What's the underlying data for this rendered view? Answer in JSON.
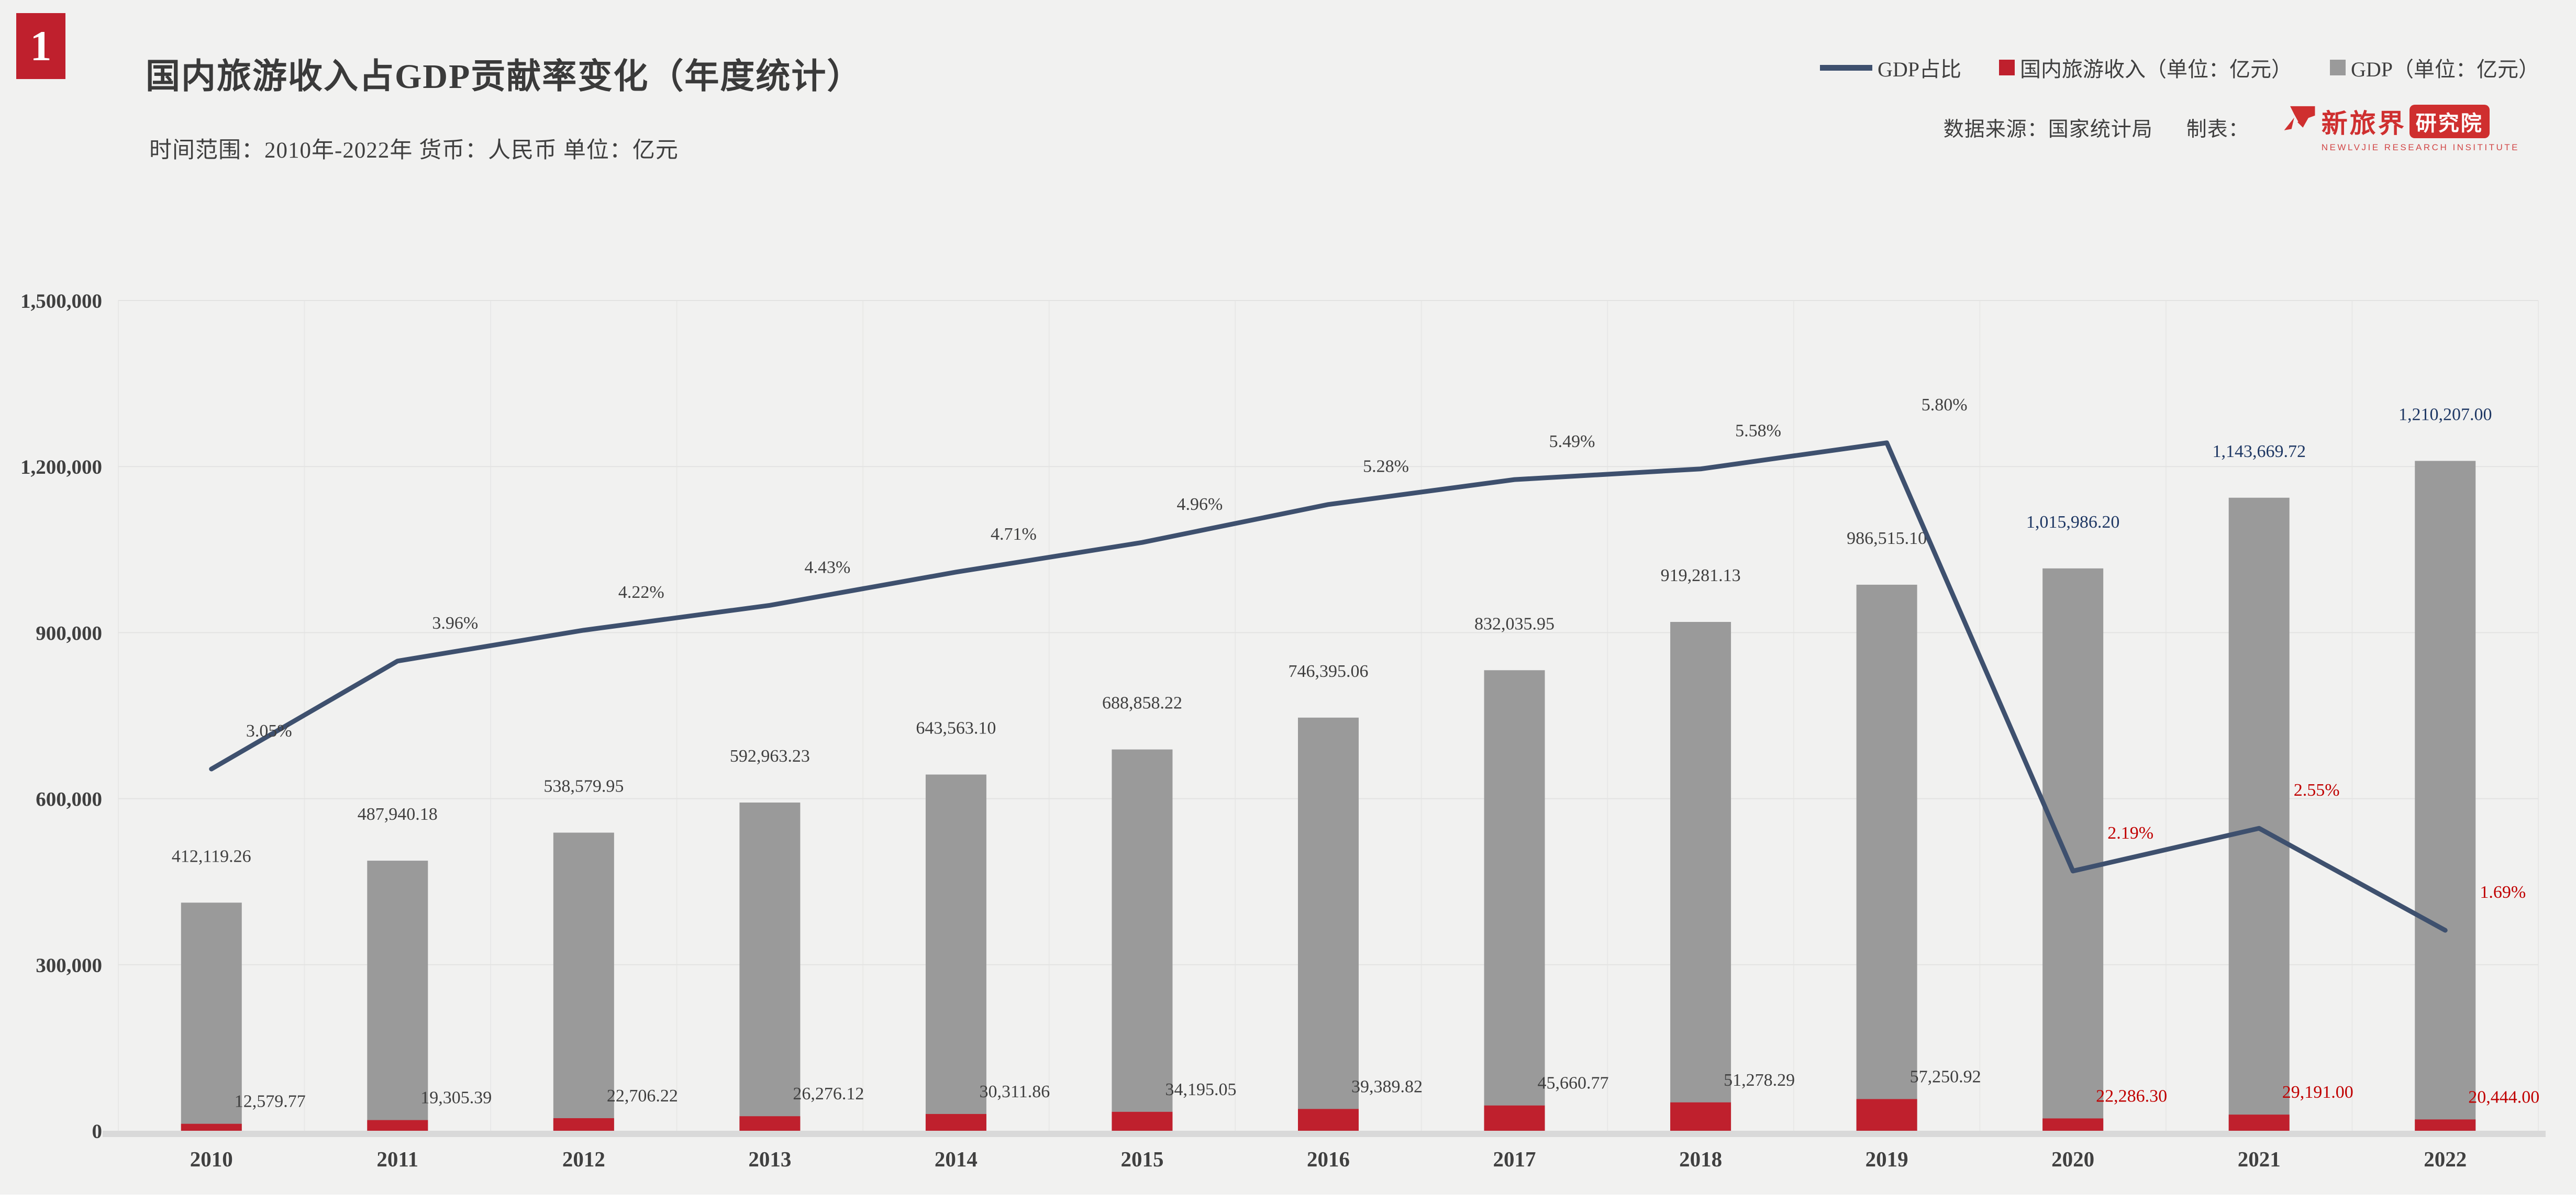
{
  "page": {
    "index_badge": "1"
  },
  "header": {
    "title": "国内旅游收入占GDP贡献率变化（年度统计）",
    "subtitle": "时间范围：2010年-2022年  货币：人民币  单位：亿元"
  },
  "legend": {
    "items": [
      {
        "label": "GDP占比",
        "swatch": "line",
        "color": "#3e506e"
      },
      {
        "label": "国内旅游收入（单位：亿元）",
        "swatch": "square",
        "color": "#bf202d"
      },
      {
        "label": "GDP（单位：亿元）",
        "swatch": "square",
        "color": "#9a9a9a"
      }
    ]
  },
  "source": {
    "data_source": "数据来源：国家统计局",
    "made_by": "制表：",
    "logo": {
      "cn_main": "新旅界",
      "cn_box": "研究院",
      "en": "NEWLVJIE RESEARCH INSITITUTE",
      "color": "#cf2f2f"
    }
  },
  "chart_data": {
    "type": "bar+line",
    "title": "国内旅游收入占GDP贡献率变化（年度统计）",
    "categories": [
      "2010",
      "2011",
      "2012",
      "2013",
      "2014",
      "2015",
      "2016",
      "2017",
      "2018",
      "2019",
      "2020",
      "2021",
      "2022"
    ],
    "series": [
      {
        "name": "GDP（单位：亿元）",
        "type": "bar",
        "axis": "primary",
        "color": "#9a9a9a",
        "values": [
          412119.26,
          487940.18,
          538579.95,
          592963.23,
          643563.1,
          688858.22,
          746395.06,
          832035.95,
          919281.13,
          986515.1,
          1015986.2,
          1143669.72,
          1210207.0
        ],
        "labels": [
          "412,119.26",
          "487,940.18",
          "538,579.95",
          "592,963.23",
          "643,563.10",
          "688,858.22",
          "746,395.06",
          "832,035.95",
          "919,281.13",
          "986,515.10",
          "1,015,986.20",
          "1,143,669.72",
          "1,210,207.00"
        ],
        "label_color": "#3f3f3f",
        "highlight_label_color": "#1f3864",
        "highlight_from_index": 10
      },
      {
        "name": "国内旅游收入（单位：亿元）",
        "type": "bar",
        "axis": "primary",
        "color": "#bf202d",
        "values": [
          12579.77,
          19305.39,
          22706.22,
          26276.12,
          30311.86,
          34195.05,
          39389.82,
          45660.77,
          51278.29,
          57250.92,
          22286.3,
          29191.0,
          20444.0
        ],
        "labels": [
          "12,579.77",
          "19,305.39",
          "22,706.22",
          "26,276.12",
          "30,311.86",
          "34,195.05",
          "39,389.82",
          "45,660.77",
          "51,278.29",
          "57,250.92",
          "22,286.30",
          "29,191.00",
          "20,444.00"
        ],
        "label_color": "#3f3f3f",
        "highlight_label_color": "#c00000",
        "highlight_from_index": 10
      },
      {
        "name": "GDP占比",
        "type": "line",
        "axis": "secondary",
        "color": "#3e506e",
        "values": [
          3.05,
          3.96,
          4.22,
          4.43,
          4.71,
          4.96,
          5.28,
          5.49,
          5.58,
          5.8,
          2.19,
          2.55,
          1.69
        ],
        "labels": [
          "3.05%",
          "3.96%",
          "4.22%",
          "4.43%",
          "4.71%",
          "4.96%",
          "5.28%",
          "5.49%",
          "5.58%",
          "5.80%",
          "2.19%",
          "2.55%",
          "1.69%"
        ],
        "label_color": "#3f3f3f",
        "highlight_label_color": "#c00000",
        "highlight_from_index": 10
      }
    ],
    "primary_axis": {
      "min": 0,
      "max": 1500000,
      "tick_interval": 300000,
      "tick_labels": [
        "0",
        "300,000",
        "600,000",
        "900,000",
        "1,200,000",
        "1,500,000"
      ]
    },
    "secondary_axis": {
      "min": 0,
      "max": 7,
      "visible": false
    },
    "grid": true,
    "legend_position": "top-right",
    "colors": {
      "background": "#f1f1f0",
      "grid_horizontal": "#e3e3e2",
      "grid_vertical": "#e8e8e7",
      "axis_strip": "#d9d9d9",
      "tick_text": "#404040"
    }
  }
}
